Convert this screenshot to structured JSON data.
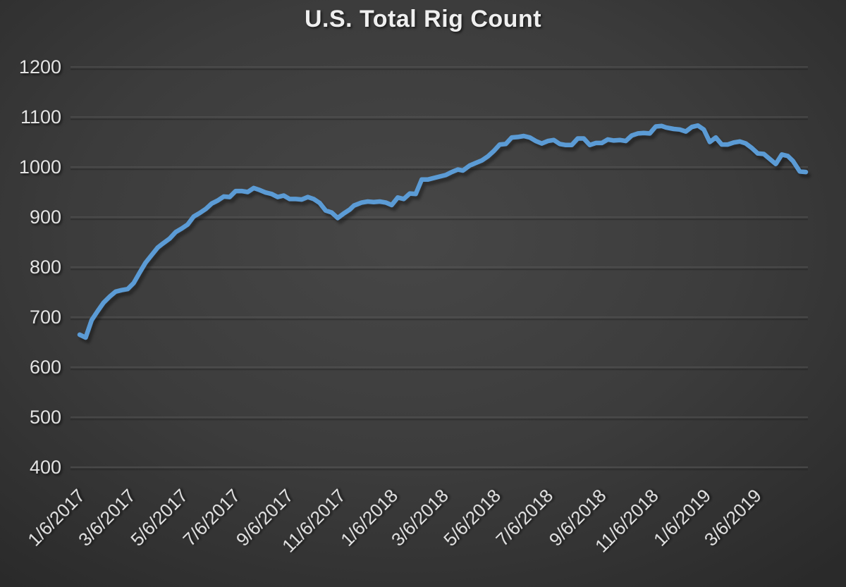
{
  "page": {
    "background_center": "#474747",
    "background_edge": "#2a2a2a"
  },
  "chart_data": {
    "type": "line",
    "title": "U.S. Total Rig Count",
    "title_color": "#efefef",
    "line_color": "#5B9BD5",
    "axis_text_color": "#e3e3e3",
    "gridline_color": "#5e5e5e",
    "xlabel": "",
    "ylabel": "",
    "ylim": [
      400,
      1200
    ],
    "y_ticks": [
      1200,
      1100,
      1000,
      900,
      800,
      700,
      600,
      500,
      400
    ],
    "x_tick_labels": [
      "1/6/2017",
      "3/6/2017",
      "5/6/2017",
      "7/6/2017",
      "9/6/2017",
      "11/6/2017",
      "1/6/2018",
      "3/6/2018",
      "5/6/2018",
      "7/6/2018",
      "9/6/2018",
      "11/6/2018",
      "1/6/2019",
      "3/6/2019"
    ],
    "grid": "horizontal",
    "legend": "none",
    "series": [
      {
        "name": "U.S. Total Rig Count",
        "dates": [
          "1/6/2017",
          "1/13/2017",
          "1/20/2017",
          "1/27/2017",
          "2/3/2017",
          "2/10/2017",
          "2/17/2017",
          "2/24/2017",
          "3/3/2017",
          "3/10/2017",
          "3/17/2017",
          "3/24/2017",
          "3/31/2017",
          "4/7/2017",
          "4/13/2017",
          "4/21/2017",
          "4/28/2017",
          "5/5/2017",
          "5/12/2017",
          "5/19/2017",
          "5/26/2017",
          "6/2/2017",
          "6/9/2017",
          "6/16/2017",
          "6/23/2017",
          "6/30/2017",
          "7/7/2017",
          "7/14/2017",
          "7/21/2017",
          "7/28/2017",
          "8/4/2017",
          "8/11/2017",
          "8/18/2017",
          "8/25/2017",
          "9/1/2017",
          "9/8/2017",
          "9/15/2017",
          "9/22/2017",
          "9/29/2017",
          "10/6/2017",
          "10/13/2017",
          "10/20/2017",
          "10/27/2017",
          "11/3/2017",
          "11/10/2017",
          "11/17/2017",
          "11/22/2017",
          "12/1/2017",
          "12/8/2017",
          "12/15/2017",
          "12/22/2017",
          "12/29/2017",
          "1/5/2018",
          "1/12/2018",
          "1/19/2018",
          "1/26/2018",
          "2/2/2018",
          "2/9/2018",
          "2/16/2018",
          "2/23/2018",
          "3/2/2018",
          "3/9/2018",
          "3/16/2018",
          "3/23/2018",
          "3/29/2018",
          "4/6/2018",
          "4/13/2018",
          "4/20/2018",
          "4/27/2018",
          "5/4/2018",
          "5/11/2018",
          "5/18/2018",
          "5/25/2018",
          "6/1/2018",
          "6/8/2018",
          "6/15/2018",
          "6/22/2018",
          "6/29/2018",
          "7/6/2018",
          "7/13/2018",
          "7/20/2018",
          "7/27/2018",
          "8/3/2018",
          "8/10/2018",
          "8/17/2018",
          "8/24/2018",
          "8/31/2018",
          "9/7/2018",
          "9/14/2018",
          "9/21/2018",
          "9/28/2018",
          "10/5/2018",
          "10/12/2018",
          "10/19/2018",
          "10/26/2018",
          "11/2/2018",
          "11/9/2018",
          "11/16/2018",
          "11/21/2018",
          "11/30/2018",
          "12/7/2018",
          "12/14/2018",
          "12/21/2018",
          "12/28/2018",
          "1/4/2019",
          "1/11/2019",
          "1/18/2019",
          "1/25/2019",
          "2/1/2019",
          "2/8/2019",
          "2/15/2019",
          "2/22/2019",
          "3/1/2019",
          "3/8/2019",
          "3/15/2019",
          "3/22/2019",
          "3/29/2019",
          "4/5/2019",
          "4/12/2019",
          "4/18/2019",
          "4/26/2019",
          "5/3/2019"
        ],
        "values": [
          665,
          659,
          694,
          712,
          729,
          741,
          751,
          754,
          756,
          768,
          789,
          809,
          824,
          839,
          847,
          857,
          870,
          877,
          885,
          901,
          908,
          916,
          927,
          933,
          941,
          940,
          952,
          952,
          950,
          958,
          954,
          949,
          946,
          940,
          943,
          936,
          936,
          935,
          940,
          936,
          928,
          913,
          909,
          898,
          907,
          915,
          923,
          929,
          931,
          930,
          931,
          929,
          924,
          939,
          936,
          947,
          946,
          975,
          975,
          978,
          981,
          984,
          990,
          995,
          993,
          1003,
          1008,
          1013,
          1021,
          1032,
          1045,
          1046,
          1059,
          1060,
          1062,
          1059,
          1052,
          1047,
          1052,
          1054,
          1046,
          1044,
          1044,
          1057,
          1057,
          1044,
          1048,
          1048,
          1055,
          1053,
          1054,
          1052,
          1063,
          1067,
          1068,
          1067,
          1081,
          1082,
          1079,
          1076,
          1075,
          1071,
          1080,
          1083,
          1075,
          1050,
          1059,
          1045,
          1045,
          1049,
          1051,
          1047,
          1038,
          1027,
          1026,
          1016,
          1006,
          1025,
          1022,
          1012,
          991,
          990
        ]
      }
    ]
  }
}
